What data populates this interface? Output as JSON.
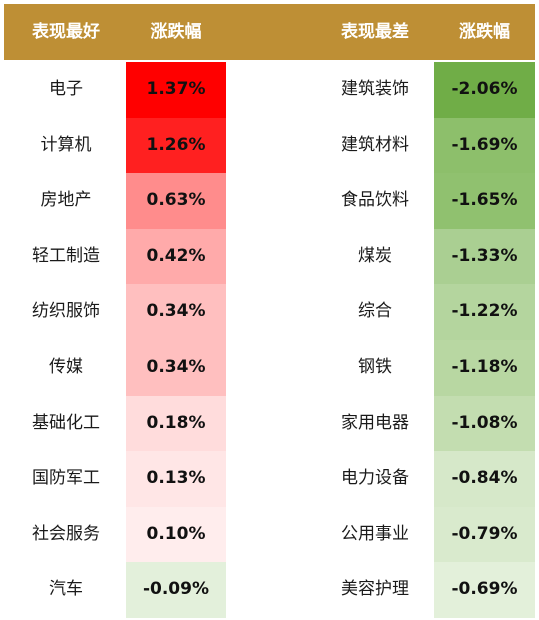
{
  "header": {
    "best_label": "表现最好",
    "best_change_label": "涨跌幅",
    "worst_label": "表现最差",
    "worst_change_label": "涨跌幅",
    "color": "#BE8F35"
  },
  "best": [
    {
      "name": "电子",
      "change": "1.37%",
      "color": "#FF0000"
    },
    {
      "name": "计算机",
      "change": "1.26%",
      "color": "#FF2020"
    },
    {
      "name": "房地产",
      "change": "0.63%",
      "color": "#FF8C8C"
    },
    {
      "name": "轻工制造",
      "change": "0.42%",
      "color": "#FFAAAA"
    },
    {
      "name": "纺织服饰",
      "change": "0.34%",
      "color": "#FFBFBF"
    },
    {
      "name": "传媒",
      "change": "0.34%",
      "color": "#FFBFBF"
    },
    {
      "name": "基础化工",
      "change": "0.18%",
      "color": "#FFDCDC"
    },
    {
      "name": "国防军工",
      "change": "0.13%",
      "color": "#FFE6E6"
    },
    {
      "name": "社会服务",
      "change": "0.10%",
      "color": "#FFEDED"
    },
    {
      "name": "汽车",
      "change": "-0.09%",
      "color": "#E3F0DB"
    }
  ],
  "worst": [
    {
      "name": "建筑装饰",
      "change": "-2.06%",
      "color": "#70AD47"
    },
    {
      "name": "建筑材料",
      "change": "-1.69%",
      "color": "#8DBF6B"
    },
    {
      "name": "食品饮料",
      "change": "-1.65%",
      "color": "#90C16F"
    },
    {
      "name": "煤炭",
      "change": "-1.33%",
      "color": "#AACF92"
    },
    {
      "name": "综合",
      "change": "-1.22%",
      "color": "#B4D59E"
    },
    {
      "name": "钢铁",
      "change": "-1.18%",
      "color": "#B8D7A2"
    },
    {
      "name": "家用电器",
      "change": "-1.08%",
      "color": "#C3DDB0"
    },
    {
      "name": "电力设备",
      "change": "-0.84%",
      "color": "#D6E8C9"
    },
    {
      "name": "公用事业",
      "change": "-0.79%",
      "color": "#D9EACD"
    },
    {
      "name": "美容护理",
      "change": "-0.69%",
      "color": "#E3F0DA"
    }
  ]
}
